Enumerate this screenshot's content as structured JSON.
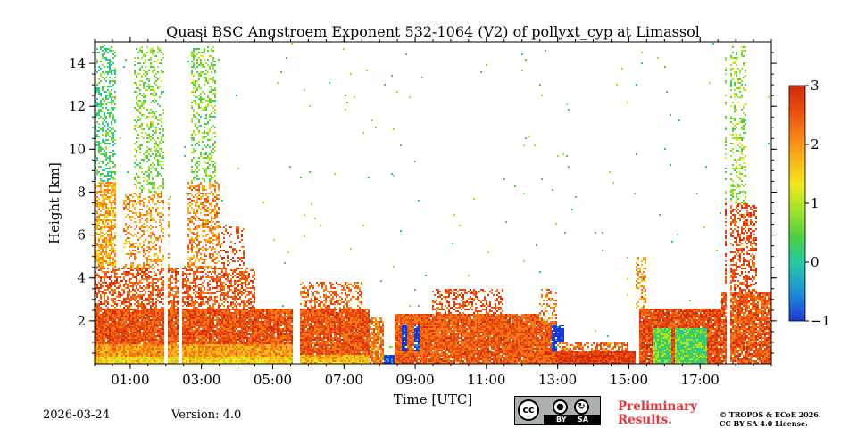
{
  "chart_data": {
    "type": "heatmap",
    "title": "Quasi BSC Angstroem Exponent 532-1064 (V2) of pollyxt_cyp at Limassol",
    "xlabel": "Time [UTC]",
    "ylabel": "Height [km]",
    "xlim_hours": [
      0,
      19
    ],
    "ylim_km": [
      0,
      15
    ],
    "x_ticks": [
      {
        "hour": 1,
        "label": "01:00"
      },
      {
        "hour": 3,
        "label": "03:00"
      },
      {
        "hour": 5,
        "label": "05:00"
      },
      {
        "hour": 7,
        "label": "07:00"
      },
      {
        "hour": 9,
        "label": "09:00"
      },
      {
        "hour": 11,
        "label": "11:00"
      },
      {
        "hour": 13,
        "label": "13:00"
      },
      {
        "hour": 15,
        "label": "15:00"
      },
      {
        "hour": 17,
        "label": "17:00"
      }
    ],
    "y_ticks": [
      {
        "km": 2,
        "label": "2"
      },
      {
        "km": 4,
        "label": "4"
      },
      {
        "km": 6,
        "label": "6"
      },
      {
        "km": 8,
        "label": "8"
      },
      {
        "km": 10,
        "label": "10"
      },
      {
        "km": 12,
        "label": "12"
      },
      {
        "km": 14,
        "label": "14"
      }
    ],
    "colorbar": {
      "min": -1,
      "max": 3,
      "ticks": [
        {
          "value": 3,
          "label": "3"
        },
        {
          "value": 2,
          "label": "2"
        },
        {
          "value": 1,
          "label": "1"
        },
        {
          "value": 0,
          "label": "0"
        },
        {
          "value": -1,
          "label": "−1"
        }
      ],
      "colormap": [
        "#1b38d6",
        "#1f8fd8",
        "#1fc8a8",
        "#4fd040",
        "#a8e22a",
        "#f0e81c",
        "#f8b818",
        "#f57a14",
        "#e84a10",
        "#d42a08"
      ]
    },
    "regions": [
      {
        "t0": 0.0,
        "t1": 5.6,
        "h0": 0.0,
        "h1": 0.35,
        "v": 1.4,
        "density": 1.0
      },
      {
        "t0": 0.0,
        "t1": 5.6,
        "h0": 0.35,
        "h1": 0.9,
        "v": 1.8,
        "density": 1.0
      },
      {
        "t0": 0.0,
        "t1": 5.6,
        "h0": 0.9,
        "h1": 2.6,
        "v": 2.35,
        "density": 0.97
      },
      {
        "t0": 0.0,
        "t1": 4.5,
        "h0": 2.6,
        "h1": 4.5,
        "v": 2.3,
        "density": 0.55
      },
      {
        "t0": 0.0,
        "t1": 0.6,
        "h0": 4.5,
        "h1": 8.5,
        "v": 1.7,
        "density": 0.7
      },
      {
        "t0": 0.0,
        "t1": 0.6,
        "h0": 8.5,
        "h1": 14.8,
        "v": 0.3,
        "density": 0.4
      },
      {
        "t0": 0.8,
        "t1": 2.1,
        "h0": 4.5,
        "h1": 8.0,
        "v": 1.8,
        "density": 0.35
      },
      {
        "t0": 1.1,
        "t1": 2.0,
        "h0": 8.0,
        "h1": 14.8,
        "v": 0.6,
        "density": 0.3
      },
      {
        "t0": 2.6,
        "t1": 3.5,
        "h0": 4.5,
        "h1": 8.5,
        "v": 1.9,
        "density": 0.45
      },
      {
        "t0": 2.7,
        "t1": 3.4,
        "h0": 8.5,
        "h1": 14.8,
        "v": 0.6,
        "density": 0.35
      },
      {
        "t0": 3.5,
        "t1": 4.2,
        "h0": 4.5,
        "h1": 6.5,
        "v": 2.4,
        "density": 0.25
      },
      {
        "t0": 5.75,
        "t1": 7.7,
        "h0": 0.0,
        "h1": 0.4,
        "v": 1.6,
        "density": 1.0
      },
      {
        "t0": 5.75,
        "t1": 7.7,
        "h0": 0.4,
        "h1": 2.6,
        "v": 2.3,
        "density": 0.96
      },
      {
        "t0": 5.75,
        "t1": 7.5,
        "h0": 2.6,
        "h1": 3.8,
        "v": 2.2,
        "density": 0.45
      },
      {
        "t0": 7.7,
        "t1": 8.1,
        "h0": 0.0,
        "h1": 2.2,
        "v": 2.1,
        "density": 0.8
      },
      {
        "t0": 8.1,
        "t1": 8.4,
        "h0": 0.0,
        "h1": 0.4,
        "v": -0.8,
        "density": 1.0
      },
      {
        "t0": 8.4,
        "t1": 13.0,
        "h0": 0.0,
        "h1": 2.3,
        "v": 2.25,
        "density": 0.97
      },
      {
        "t0": 8.6,
        "t1": 8.75,
        "h0": 0.6,
        "h1": 1.8,
        "v": -0.9,
        "density": 0.9
      },
      {
        "t0": 8.95,
        "t1": 9.1,
        "h0": 0.6,
        "h1": 1.8,
        "v": -0.9,
        "density": 0.9
      },
      {
        "t0": 9.5,
        "t1": 11.5,
        "h0": 2.3,
        "h1": 3.5,
        "v": 2.4,
        "density": 0.4
      },
      {
        "t0": 12.5,
        "t1": 13.0,
        "h0": 2.0,
        "h1": 3.5,
        "v": 2.0,
        "density": 0.3
      },
      {
        "t0": 12.85,
        "t1": 13.2,
        "h0": 0.6,
        "h1": 1.8,
        "v": -0.9,
        "density": 0.9
      },
      {
        "t0": 13.0,
        "t1": 15.2,
        "h0": 0.0,
        "h1": 0.6,
        "v": 2.6,
        "density": 1.0
      },
      {
        "t0": 13.0,
        "t1": 15.0,
        "h0": 0.6,
        "h1": 1.0,
        "v": 2.1,
        "density": 0.6
      },
      {
        "t0": 15.3,
        "t1": 17.6,
        "h0": 0.0,
        "h1": 2.6,
        "v": 2.4,
        "density": 0.95
      },
      {
        "t0": 15.2,
        "t1": 15.5,
        "h0": 2.6,
        "h1": 5.0,
        "v": 1.8,
        "density": 0.35
      },
      {
        "t0": 15.7,
        "t1": 16.2,
        "h0": 0.0,
        "h1": 1.7,
        "v": 0.5,
        "density": 1.0
      },
      {
        "t0": 16.3,
        "t1": 17.2,
        "h0": 0.0,
        "h1": 1.7,
        "v": 0.4,
        "density": 1.0
      },
      {
        "t0": 17.6,
        "t1": 19.0,
        "h0": 0.0,
        "h1": 3.3,
        "v": 2.3,
        "density": 0.9
      },
      {
        "t0": 17.7,
        "t1": 18.6,
        "h0": 3.3,
        "h1": 7.5,
        "v": 2.4,
        "density": 0.5
      },
      {
        "t0": 17.7,
        "t1": 18.3,
        "h0": 7.5,
        "h1": 14.8,
        "v": 0.7,
        "density": 0.3
      }
    ],
    "gaps": [
      {
        "t0": 5.58,
        "t1": 5.75
      },
      {
        "t0": 1.95,
        "t1": 2.05
      },
      {
        "t0": 2.35,
        "t1": 2.45
      },
      {
        "t0": 17.75,
        "t1": 17.85
      }
    ],
    "noise_density": 0.003
  },
  "footer": {
    "date": "2026-03-24",
    "version": "Version: 4.0",
    "preliminary_line1": "Preliminary",
    "preliminary_line2": "Results.",
    "copyright_line1": "© TROPOS & ECoE 2026.",
    "copyright_line2": "CC BY SA 4.0 License."
  },
  "license_badge": {
    "cc": "cc",
    "by": "BY",
    "sa": "SA"
  }
}
